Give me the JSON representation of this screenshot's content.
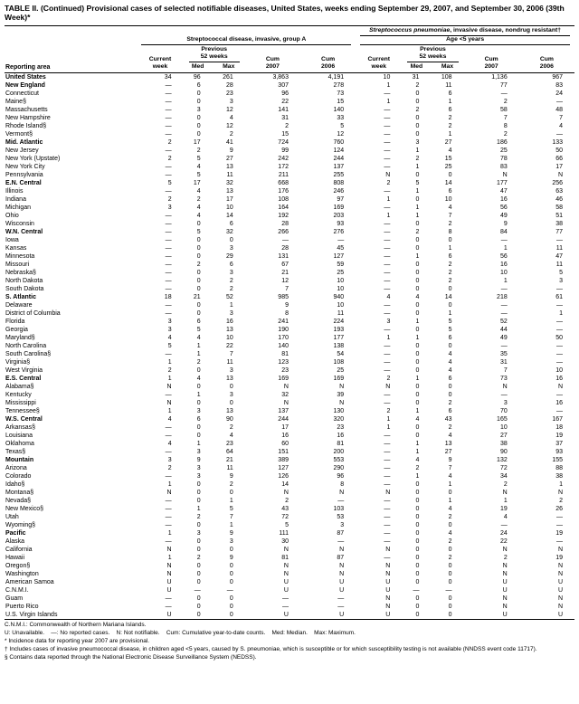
{
  "title": "TABLE II. (Continued) Provisional cases of selected notifiable diseases, United States, weeks ending September 29, 2007, and September 30, 2006 (39th Week)*",
  "header": {
    "reporting_area": "Reporting area",
    "group1": "Streptococcal disease, invasive, group A",
    "group2_italic": "Streptococcus pneumoniae",
    "group2_rest": ", invasive disease, nondrug resistant†",
    "group2_sub": "Age <5 years",
    "current_week": "Current\nweek",
    "prev52": "Previous\n52 weeks",
    "med": "Med",
    "max": "Max",
    "cum2007": "Cum\n2007",
    "cum2006": "Cum\n2006"
  },
  "table": {
    "rows": [
      {
        "area": "United States",
        "type": "total",
        "gap_before": false,
        "cells": [
          "34",
          "96",
          "261",
          "3,863",
          "4,191",
          "10",
          "31",
          "108",
          "1,136",
          "967"
        ]
      },
      {
        "area": "New England",
        "type": "region",
        "gap_before": true,
        "cells": [
          "—",
          "6",
          "28",
          "307",
          "278",
          "1",
          "2",
          "11",
          "77",
          "83"
        ]
      },
      {
        "area": "Connecticut",
        "type": "state",
        "cells": [
          "—",
          "0",
          "23",
          "96",
          "73",
          "—",
          "0",
          "6",
          "—",
          "24"
        ]
      },
      {
        "area": "Maine§",
        "type": "state",
        "cells": [
          "—",
          "0",
          "3",
          "22",
          "15",
          "1",
          "0",
          "1",
          "2",
          "—"
        ]
      },
      {
        "area": "Massachusetts",
        "type": "state",
        "cells": [
          "—",
          "3",
          "12",
          "141",
          "140",
          "—",
          "2",
          "6",
          "58",
          "48"
        ]
      },
      {
        "area": "New Hampshire",
        "type": "state",
        "cells": [
          "—",
          "0",
          "4",
          "31",
          "33",
          "—",
          "0",
          "2",
          "7",
          "7"
        ]
      },
      {
        "area": "Rhode Island§",
        "type": "state",
        "cells": [
          "—",
          "0",
          "12",
          "2",
          "5",
          "—",
          "0",
          "2",
          "8",
          "4"
        ]
      },
      {
        "area": "Vermont§",
        "type": "state",
        "cells": [
          "—",
          "0",
          "2",
          "15",
          "12",
          "—",
          "0",
          "1",
          "2",
          "—"
        ]
      },
      {
        "area": "Mid. Atlantic",
        "type": "region",
        "gap_before": true,
        "cells": [
          "2",
          "17",
          "41",
          "724",
          "760",
          "—",
          "3",
          "27",
          "186",
          "133"
        ]
      },
      {
        "area": "New Jersey",
        "type": "state",
        "cells": [
          "—",
          "2",
          "9",
          "99",
          "124",
          "—",
          "1",
          "4",
          "25",
          "50"
        ]
      },
      {
        "area": "New York (Upstate)",
        "type": "state",
        "cells": [
          "2",
          "5",
          "27",
          "242",
          "244",
          "—",
          "2",
          "15",
          "78",
          "66"
        ]
      },
      {
        "area": "New York City",
        "type": "state",
        "cells": [
          "—",
          "4",
          "13",
          "172",
          "137",
          "—",
          "1",
          "25",
          "83",
          "17"
        ]
      },
      {
        "area": "Pennsylvania",
        "type": "state",
        "cells": [
          "—",
          "5",
          "11",
          "211",
          "255",
          "N",
          "0",
          "0",
          "N",
          "N"
        ]
      },
      {
        "area": "E.N. Central",
        "type": "region",
        "gap_before": true,
        "cells": [
          "5",
          "17",
          "32",
          "668",
          "808",
          "2",
          "5",
          "14",
          "177",
          "256"
        ]
      },
      {
        "area": "Illinois",
        "type": "state",
        "cells": [
          "—",
          "4",
          "13",
          "176",
          "246",
          "—",
          "1",
          "6",
          "47",
          "63"
        ]
      },
      {
        "area": "Indiana",
        "type": "state",
        "cells": [
          "2",
          "2",
          "17",
          "108",
          "97",
          "1",
          "0",
          "10",
          "16",
          "46"
        ]
      },
      {
        "area": "Michigan",
        "type": "state",
        "cells": [
          "3",
          "4",
          "10",
          "164",
          "169",
          "—",
          "1",
          "4",
          "56",
          "58"
        ]
      },
      {
        "area": "Ohio",
        "type": "state",
        "cells": [
          "—",
          "4",
          "14",
          "192",
          "203",
          "1",
          "1",
          "7",
          "49",
          "51"
        ]
      },
      {
        "area": "Wisconsin",
        "type": "state",
        "cells": [
          "—",
          "0",
          "6",
          "28",
          "93",
          "—",
          "0",
          "2",
          "9",
          "38"
        ]
      },
      {
        "area": "W.N. Central",
        "type": "region",
        "gap_before": true,
        "cells": [
          "—",
          "5",
          "32",
          "266",
          "276",
          "—",
          "2",
          "8",
          "84",
          "77"
        ]
      },
      {
        "area": "Iowa",
        "type": "state",
        "cells": [
          "—",
          "0",
          "0",
          "—",
          "—",
          "—",
          "0",
          "0",
          "—",
          "—"
        ]
      },
      {
        "area": "Kansas",
        "type": "state",
        "cells": [
          "—",
          "0",
          "3",
          "28",
          "45",
          "—",
          "0",
          "1",
          "1",
          "11"
        ]
      },
      {
        "area": "Minnesota",
        "type": "state",
        "cells": [
          "—",
          "0",
          "29",
          "131",
          "127",
          "—",
          "1",
          "6",
          "56",
          "47"
        ]
      },
      {
        "area": "Missouri",
        "type": "state",
        "cells": [
          "—",
          "2",
          "6",
          "67",
          "59",
          "—",
          "0",
          "2",
          "16",
          "11"
        ]
      },
      {
        "area": "Nebraska§",
        "type": "state",
        "cells": [
          "—",
          "0",
          "3",
          "21",
          "25",
          "—",
          "0",
          "2",
          "10",
          "5"
        ]
      },
      {
        "area": "North Dakota",
        "type": "state",
        "cells": [
          "—",
          "0",
          "2",
          "12",
          "10",
          "—",
          "0",
          "2",
          "1",
          "3"
        ]
      },
      {
        "area": "South Dakota",
        "type": "state",
        "cells": [
          "—",
          "0",
          "2",
          "7",
          "10",
          "—",
          "0",
          "0",
          "—",
          "—"
        ]
      },
      {
        "area": "S. Atlantic",
        "type": "region",
        "gap_before": true,
        "cells": [
          "18",
          "21",
          "52",
          "985",
          "940",
          "4",
          "4",
          "14",
          "218",
          "61"
        ]
      },
      {
        "area": "Delaware",
        "type": "state",
        "cells": [
          "—",
          "0",
          "1",
          "9",
          "10",
          "—",
          "0",
          "0",
          "—",
          "—"
        ]
      },
      {
        "area": "District of Columbia",
        "type": "state",
        "cells": [
          "—",
          "0",
          "3",
          "8",
          "11",
          "—",
          "0",
          "1",
          "—",
          "1"
        ]
      },
      {
        "area": "Florida",
        "type": "state",
        "cells": [
          "3",
          "6",
          "16",
          "241",
          "224",
          "3",
          "1",
          "5",
          "52",
          "—"
        ]
      },
      {
        "area": "Georgia",
        "type": "state",
        "cells": [
          "3",
          "5",
          "13",
          "190",
          "193",
          "—",
          "0",
          "5",
          "44",
          "—"
        ]
      },
      {
        "area": "Maryland§",
        "type": "state",
        "cells": [
          "4",
          "4",
          "10",
          "170",
          "177",
          "1",
          "1",
          "6",
          "49",
          "50"
        ]
      },
      {
        "area": "North Carolina",
        "type": "state",
        "cells": [
          "5",
          "1",
          "22",
          "140",
          "138",
          "—",
          "0",
          "0",
          "—",
          "—"
        ]
      },
      {
        "area": "South Carolina§",
        "type": "state",
        "cells": [
          "—",
          "1",
          "7",
          "81",
          "54",
          "—",
          "0",
          "4",
          "35",
          "—"
        ]
      },
      {
        "area": "Virginia§",
        "type": "state",
        "cells": [
          "1",
          "2",
          "11",
          "123",
          "108",
          "—",
          "0",
          "4",
          "31",
          "—"
        ]
      },
      {
        "area": "West Virginia",
        "type": "state",
        "cells": [
          "2",
          "0",
          "3",
          "23",
          "25",
          "—",
          "0",
          "4",
          "7",
          "10"
        ]
      },
      {
        "area": "E.S. Central",
        "type": "region",
        "gap_before": true,
        "cells": [
          "1",
          "4",
          "13",
          "169",
          "169",
          "2",
          "1",
          "6",
          "73",
          "16"
        ]
      },
      {
        "area": "Alabama§",
        "type": "state",
        "cells": [
          "N",
          "0",
          "0",
          "N",
          "N",
          "N",
          "0",
          "0",
          "N",
          "N"
        ]
      },
      {
        "area": "Kentucky",
        "type": "state",
        "cells": [
          "—",
          "1",
          "3",
          "32",
          "39",
          "—",
          "0",
          "0",
          "—",
          "—"
        ]
      },
      {
        "area": "Mississippi",
        "type": "state",
        "cells": [
          "N",
          "0",
          "0",
          "N",
          "N",
          "—",
          "0",
          "2",
          "3",
          "16"
        ]
      },
      {
        "area": "Tennessee§",
        "type": "state",
        "cells": [
          "1",
          "3",
          "13",
          "137",
          "130",
          "2",
          "1",
          "6",
          "70",
          "—"
        ]
      },
      {
        "area": "W.S. Central",
        "type": "region",
        "gap_before": true,
        "cells": [
          "4",
          "6",
          "90",
          "244",
          "320",
          "1",
          "4",
          "43",
          "165",
          "167"
        ]
      },
      {
        "area": "Arkansas§",
        "type": "state",
        "cells": [
          "—",
          "0",
          "2",
          "17",
          "23",
          "1",
          "0",
          "2",
          "10",
          "18"
        ]
      },
      {
        "area": "Louisiana",
        "type": "state",
        "cells": [
          "—",
          "0",
          "4",
          "16",
          "16",
          "—",
          "0",
          "4",
          "27",
          "19"
        ]
      },
      {
        "area": "Oklahoma",
        "type": "state",
        "cells": [
          "4",
          "1",
          "23",
          "60",
          "81",
          "—",
          "1",
          "13",
          "38",
          "37"
        ]
      },
      {
        "area": "Texas§",
        "type": "state",
        "cells": [
          "—",
          "3",
          "64",
          "151",
          "200",
          "—",
          "1",
          "27",
          "90",
          "93"
        ]
      },
      {
        "area": "Mountain",
        "type": "region",
        "gap_before": true,
        "cells": [
          "3",
          "9",
          "21",
          "389",
          "553",
          "—",
          "4",
          "9",
          "132",
          "155"
        ]
      },
      {
        "area": "Arizona",
        "type": "state",
        "cells": [
          "2",
          "3",
          "11",
          "127",
          "290",
          "—",
          "2",
          "7",
          "72",
          "88"
        ]
      },
      {
        "area": "Colorado",
        "type": "state",
        "cells": [
          "—",
          "3",
          "9",
          "126",
          "96",
          "—",
          "1",
          "4",
          "34",
          "38"
        ]
      },
      {
        "area": "Idaho§",
        "type": "state",
        "cells": [
          "1",
          "0",
          "2",
          "14",
          "8",
          "—",
          "0",
          "1",
          "2",
          "1"
        ]
      },
      {
        "area": "Montana§",
        "type": "state",
        "cells": [
          "N",
          "0",
          "0",
          "N",
          "N",
          "N",
          "0",
          "0",
          "N",
          "N"
        ]
      },
      {
        "area": "Nevada§",
        "type": "state",
        "cells": [
          "—",
          "0",
          "1",
          "2",
          "—",
          "—",
          "0",
          "1",
          "1",
          "2"
        ]
      },
      {
        "area": "New Mexico§",
        "type": "state",
        "cells": [
          "—",
          "1",
          "5",
          "43",
          "103",
          "—",
          "0",
          "4",
          "19",
          "26"
        ]
      },
      {
        "area": "Utah",
        "type": "state",
        "cells": [
          "—",
          "2",
          "7",
          "72",
          "53",
          "—",
          "0",
          "2",
          "4",
          "—"
        ]
      },
      {
        "area": "Wyoming§",
        "type": "state",
        "cells": [
          "—",
          "0",
          "1",
          "5",
          "3",
          "—",
          "0",
          "0",
          "—",
          "—"
        ]
      },
      {
        "area": "Pacific",
        "type": "region",
        "gap_before": true,
        "cells": [
          "1",
          "3",
          "9",
          "111",
          "87",
          "—",
          "0",
          "4",
          "24",
          "19"
        ]
      },
      {
        "area": "Alaska",
        "type": "state",
        "cells": [
          "—",
          "0",
          "3",
          "30",
          "—",
          "—",
          "0",
          "2",
          "22",
          "—"
        ]
      },
      {
        "area": "California",
        "type": "state",
        "cells": [
          "N",
          "0",
          "0",
          "N",
          "N",
          "N",
          "0",
          "0",
          "N",
          "N"
        ]
      },
      {
        "area": "Hawaii",
        "type": "state",
        "cells": [
          "1",
          "2",
          "9",
          "81",
          "87",
          "—",
          "0",
          "2",
          "2",
          "19"
        ]
      },
      {
        "area": "Oregon§",
        "type": "state",
        "cells": [
          "N",
          "0",
          "0",
          "N",
          "N",
          "N",
          "0",
          "0",
          "N",
          "N"
        ]
      },
      {
        "area": "Washington",
        "type": "state",
        "cells": [
          "N",
          "0",
          "0",
          "N",
          "N",
          "N",
          "0",
          "0",
          "N",
          "N"
        ]
      },
      {
        "area": "American Samoa",
        "type": "territory",
        "gap_before": true,
        "cells": [
          "U",
          "0",
          "0",
          "U",
          "U",
          "U",
          "0",
          "0",
          "U",
          "U"
        ]
      },
      {
        "area": "C.N.M.I.",
        "type": "territory",
        "cells": [
          "U",
          "—",
          "—",
          "U",
          "U",
          "U",
          "—",
          "—",
          "U",
          "U"
        ]
      },
      {
        "area": "Guam",
        "type": "territory",
        "cells": [
          "—",
          "0",
          "0",
          "—",
          "—",
          "N",
          "0",
          "0",
          "N",
          "N"
        ]
      },
      {
        "area": "Puerto Rico",
        "type": "territory",
        "cells": [
          "—",
          "0",
          "0",
          "—",
          "—",
          "N",
          "0",
          "0",
          "N",
          "N"
        ]
      },
      {
        "area": "U.S. Virgin Islands",
        "type": "territory",
        "cells": [
          "U",
          "0",
          "0",
          "U",
          "U",
          "U",
          "0",
          "0",
          "U",
          "U"
        ]
      }
    ]
  },
  "footnotes": [
    "C.N.M.I.: Commonwealth of Northern Mariana Islands.",
    "U: Unavailable.    —: No reported cases.    N: Not notifiable.    Cum: Cumulative year-to-date counts.    Med: Median.    Max: Maximum.",
    "* Incidence data for reporting year 2007 are provisional.",
    "† Includes cases of invasive pneumococcal disease, in children aged <5 years, caused by S. pneumoniae, which is susceptible or for which susceptibility testing is not available (NNDSS event code 11717).",
    "§ Contains data reported through the National Electronic Disease Surveillance System (NEDSS)."
  ]
}
